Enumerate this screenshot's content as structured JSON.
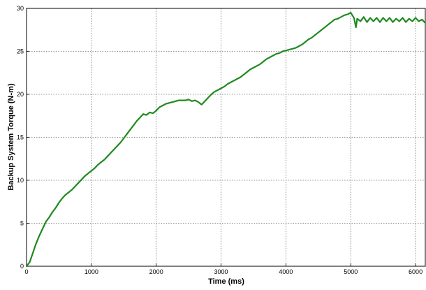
{
  "chart_data": {
    "type": "line",
    "title": "",
    "xlabel": "Time (ms)",
    "ylabel": "Backup System Torque (N-m)",
    "xlim": [
      0,
      6150
    ],
    "ylim": [
      0,
      30
    ],
    "xticks": [
      0,
      1000,
      2000,
      3000,
      4000,
      5000,
      6000
    ],
    "yticks": [
      0,
      5,
      10,
      15,
      20,
      25,
      30
    ],
    "grid": true,
    "grid_style": "dotted",
    "line_color": "#1f8a1f",
    "series": [
      {
        "name": "",
        "x": [
          0,
          50,
          100,
          150,
          200,
          250,
          300,
          350,
          400,
          450,
          500,
          550,
          600,
          650,
          700,
          750,
          800,
          850,
          900,
          950,
          1000,
          1050,
          1100,
          1150,
          1200,
          1250,
          1300,
          1350,
          1400,
          1450,
          1500,
          1550,
          1600,
          1650,
          1700,
          1750,
          1800,
          1850,
          1900,
          1950,
          2000,
          2050,
          2100,
          2150,
          2200,
          2250,
          2300,
          2350,
          2400,
          2450,
          2500,
          2550,
          2600,
          2650,
          2700,
          2750,
          2800,
          2850,
          2900,
          2950,
          3000,
          3050,
          3100,
          3150,
          3200,
          3250,
          3300,
          3350,
          3400,
          3450,
          3500,
          3550,
          3600,
          3650,
          3700,
          3750,
          3800,
          3850,
          3900,
          3950,
          4000,
          4050,
          4100,
          4150,
          4200,
          4250,
          4300,
          4350,
          4400,
          4450,
          4500,
          4550,
          4600,
          4650,
          4700,
          4750,
          4800,
          4850,
          4900,
          4950,
          5000,
          5050,
          5080,
          5100,
          5150,
          5200,
          5250,
          5300,
          5350,
          5400,
          5450,
          5500,
          5550,
          5600,
          5650,
          5700,
          5750,
          5800,
          5850,
          5900,
          5950,
          6000,
          6050,
          6100,
          6150
        ],
        "values": [
          0,
          0.5,
          1.6,
          2.7,
          3.6,
          4.4,
          5.2,
          5.7,
          6.3,
          6.8,
          7.4,
          7.9,
          8.3,
          8.6,
          8.9,
          9.3,
          9.7,
          10.1,
          10.5,
          10.8,
          11.1,
          11.4,
          11.8,
          12.1,
          12.4,
          12.8,
          13.2,
          13.6,
          14.0,
          14.4,
          14.9,
          15.4,
          15.9,
          16.4,
          16.9,
          17.3,
          17.7,
          17.6,
          17.9,
          17.8,
          18.1,
          18.5,
          18.7,
          18.9,
          19.0,
          19.1,
          19.2,
          19.3,
          19.3,
          19.3,
          19.4,
          19.2,
          19.3,
          19.1,
          18.8,
          19.2,
          19.6,
          20.0,
          20.3,
          20.5,
          20.7,
          20.9,
          21.2,
          21.4,
          21.6,
          21.8,
          22.0,
          22.3,
          22.6,
          22.9,
          23.1,
          23.3,
          23.5,
          23.8,
          24.1,
          24.3,
          24.5,
          24.7,
          24.8,
          25.0,
          25.1,
          25.2,
          25.3,
          25.4,
          25.6,
          25.8,
          26.1,
          26.4,
          26.6,
          26.9,
          27.2,
          27.5,
          27.8,
          28.1,
          28.4,
          28.7,
          28.8,
          29.0,
          29.2,
          29.3,
          29.5,
          28.9,
          27.8,
          28.8,
          28.5,
          29.0,
          28.4,
          28.9,
          28.5,
          28.9,
          28.4,
          28.9,
          28.5,
          28.9,
          28.4,
          28.8,
          28.5,
          28.9,
          28.4,
          28.8,
          28.5,
          28.9,
          28.5,
          28.7,
          28.3
        ]
      }
    ]
  }
}
